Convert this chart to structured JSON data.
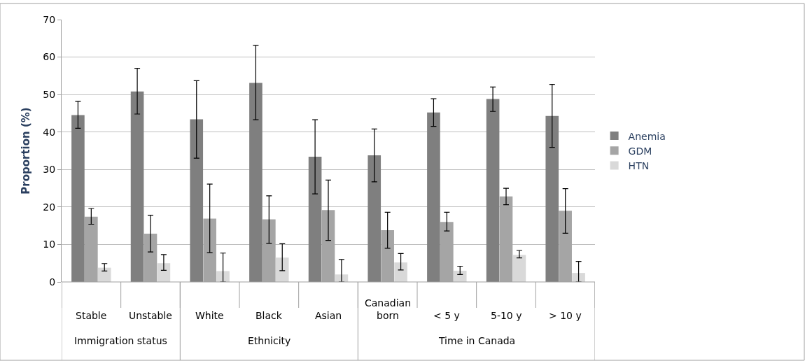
{
  "chart_data": {
    "type": "bar",
    "ylabel": "Proportion (%)",
    "categories": [
      "Stable",
      "Unstable",
      "White",
      "Black",
      "Asian",
      "Canadian born",
      "< 5 y",
      "5-10 y",
      "> 10 y"
    ],
    "series": [
      {
        "name": "Anemia",
        "color": "#7f7f7f",
        "values": [
          44.5,
          50.8,
          43.4,
          53.1,
          33.4,
          33.8,
          45.2,
          48.8,
          44.3
        ],
        "errors": [
          [
            41,
            48.2
          ],
          [
            44.8,
            57
          ],
          [
            33,
            53.7
          ],
          [
            43.3,
            63.1
          ],
          [
            23.5,
            43.3
          ],
          [
            26.7,
            40.8
          ],
          [
            41.5,
            48.9
          ],
          [
            45.5,
            52
          ],
          [
            35.9,
            52.7
          ]
        ]
      },
      {
        "name": "GDM",
        "color": "#a5a5a5",
        "values": [
          17.4,
          12.9,
          16.9,
          16.7,
          19.2,
          13.8,
          16,
          22.8,
          19
        ],
        "errors": [
          [
            15.4,
            19.6
          ],
          [
            8,
            17.8
          ],
          [
            7.8,
            26.1
          ],
          [
            10.3,
            23
          ],
          [
            11.1,
            27.2
          ],
          [
            9,
            18.6
          ],
          [
            13.6,
            18.6
          ],
          [
            20.6,
            25
          ],
          [
            13,
            24.9
          ]
        ]
      },
      {
        "name": "HTN",
        "color": "#d9d9d9",
        "values": [
          3.8,
          5,
          2.9,
          6.5,
          2,
          5.2,
          3,
          7.2,
          2.4
        ],
        "errors": [
          [
            2.9,
            4.9
          ],
          [
            3.1,
            7.3
          ],
          [
            0,
            7.7
          ],
          [
            3,
            10.2
          ],
          [
            0,
            6
          ],
          [
            3.2,
            7.6
          ],
          [
            2,
            4.2
          ],
          [
            6.4,
            8.4
          ],
          [
            0,
            5.5
          ]
        ]
      }
    ],
    "ylim": [
      0,
      70
    ],
    "yticks": [
      0,
      10,
      20,
      30,
      40,
      50,
      60,
      70
    ],
    "grid": "y",
    "legend": "right",
    "annotations": [
      "Immigration status",
      "Ethnicity",
      "Time in Canada"
    ]
  }
}
